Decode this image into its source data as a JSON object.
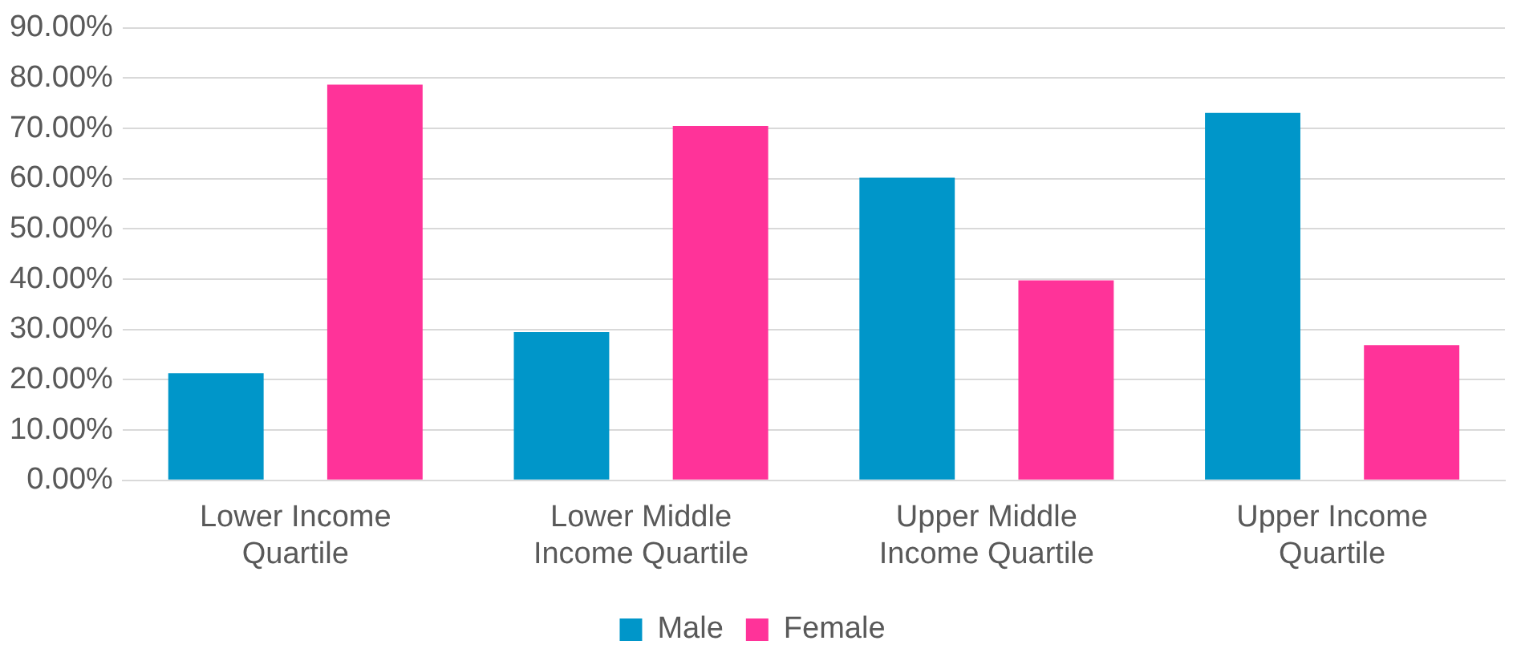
{
  "chart_data": {
    "type": "bar",
    "categories": [
      "Lower Income Quartile",
      "Lower Middle Income Quartile",
      "Upper Middle Income Quartile",
      "Upper Income Quartile"
    ],
    "series": [
      {
        "name": "Male",
        "color": "#0096c9",
        "values": [
          21.3,
          29.5,
          60.2,
          73.1
        ]
      },
      {
        "name": "Female",
        "color": "#ff3399",
        "values": [
          78.7,
          70.5,
          39.8,
          26.9
        ]
      }
    ],
    "ylim": [
      0,
      90
    ],
    "yticks": [
      {
        "value": 0,
        "label": "0.00%"
      },
      {
        "value": 10,
        "label": "10.00%"
      },
      {
        "value": 20,
        "label": "20.00%"
      },
      {
        "value": 30,
        "label": "30.00%"
      },
      {
        "value": 40,
        "label": "40.00%"
      },
      {
        "value": 50,
        "label": "50.00%"
      },
      {
        "value": 60,
        "label": "60.00%"
      },
      {
        "value": 70,
        "label": "70.00%"
      },
      {
        "value": 80,
        "label": "80.00%"
      },
      {
        "value": 90,
        "label": "90.00%"
      }
    ],
    "grid": "y",
    "legend": "bottom"
  }
}
